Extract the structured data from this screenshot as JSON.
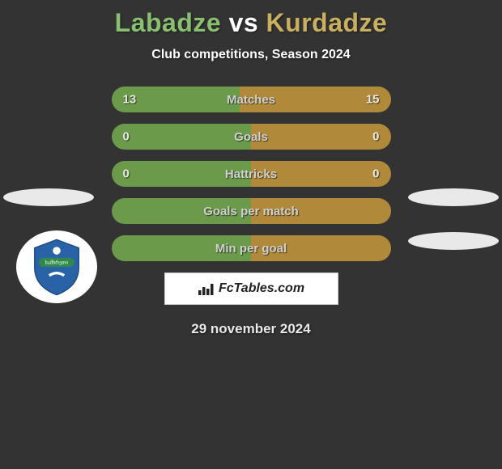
{
  "header": {
    "player1": "Labadze",
    "vs": "vs",
    "player2": "Kurdadze",
    "title_color_p1": "#88c070",
    "title_color_vs": "#ffffff",
    "title_color_p2": "#c9b060",
    "subtitle": "Club competitions, Season 2024"
  },
  "bars": {
    "left_color": "#6a9a4a",
    "right_color": "#b08a3a",
    "height": 32,
    "border_radius": 16,
    "items": [
      {
        "label": "Matches",
        "left": "13",
        "right": "15",
        "left_pct": 46,
        "right_pct": 54
      },
      {
        "label": "Goals",
        "left": "0",
        "right": "0",
        "left_pct": 50,
        "right_pct": 50
      },
      {
        "label": "Hattricks",
        "left": "0",
        "right": "0",
        "left_pct": 50,
        "right_pct": 50
      },
      {
        "label": "Goals per match",
        "left": "",
        "right": "",
        "left_pct": 50,
        "right_pct": 50
      },
      {
        "label": "Min per goal",
        "left": "",
        "right": "",
        "left_pct": 50,
        "right_pct": 50
      }
    ]
  },
  "brand": {
    "text": "FcTables.com"
  },
  "date": "29 november 2024",
  "badge": {
    "shield_fill": "#2a62a8",
    "accent": "#2f8a4a"
  }
}
